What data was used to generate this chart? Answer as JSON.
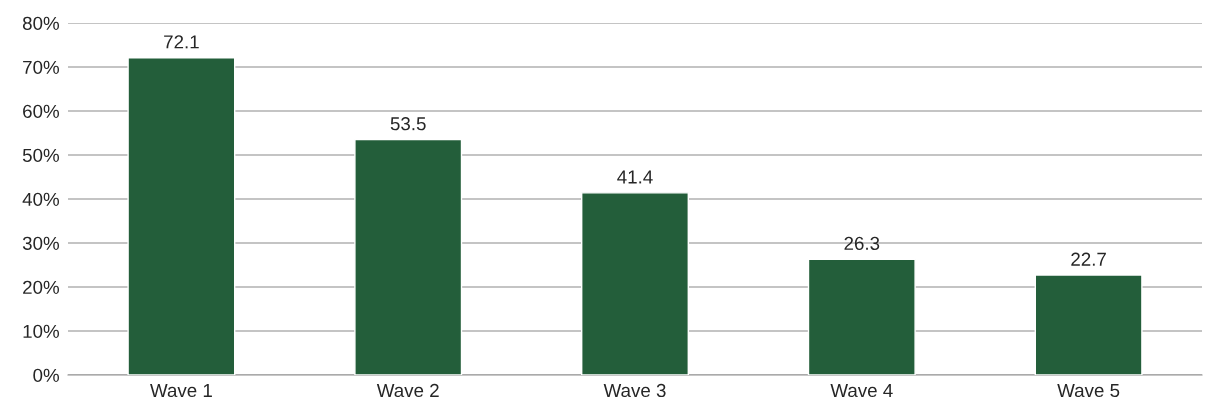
{
  "chart_data": {
    "type": "bar",
    "categories": [
      "Wave 1",
      "Wave 2",
      "Wave 3",
      "Wave 4",
      "Wave 5"
    ],
    "values": [
      72.1,
      53.5,
      41.4,
      26.3,
      22.7
    ],
    "color": "#235e3a",
    "ylim": [
      0,
      80
    ],
    "yticks": [
      {
        "value": 0,
        "label": "0%"
      },
      {
        "value": 10,
        "label": "10%"
      },
      {
        "value": 20,
        "label": "20%"
      },
      {
        "value": 30,
        "label": "30%"
      },
      {
        "value": 40,
        "label": "40%"
      },
      {
        "value": 50,
        "label": "50%"
      },
      {
        "value": 60,
        "label": "60%"
      },
      {
        "value": 70,
        "label": "70%"
      },
      {
        "value": 80,
        "label": "80%"
      }
    ],
    "grid": "y",
    "data_labels": true
  }
}
